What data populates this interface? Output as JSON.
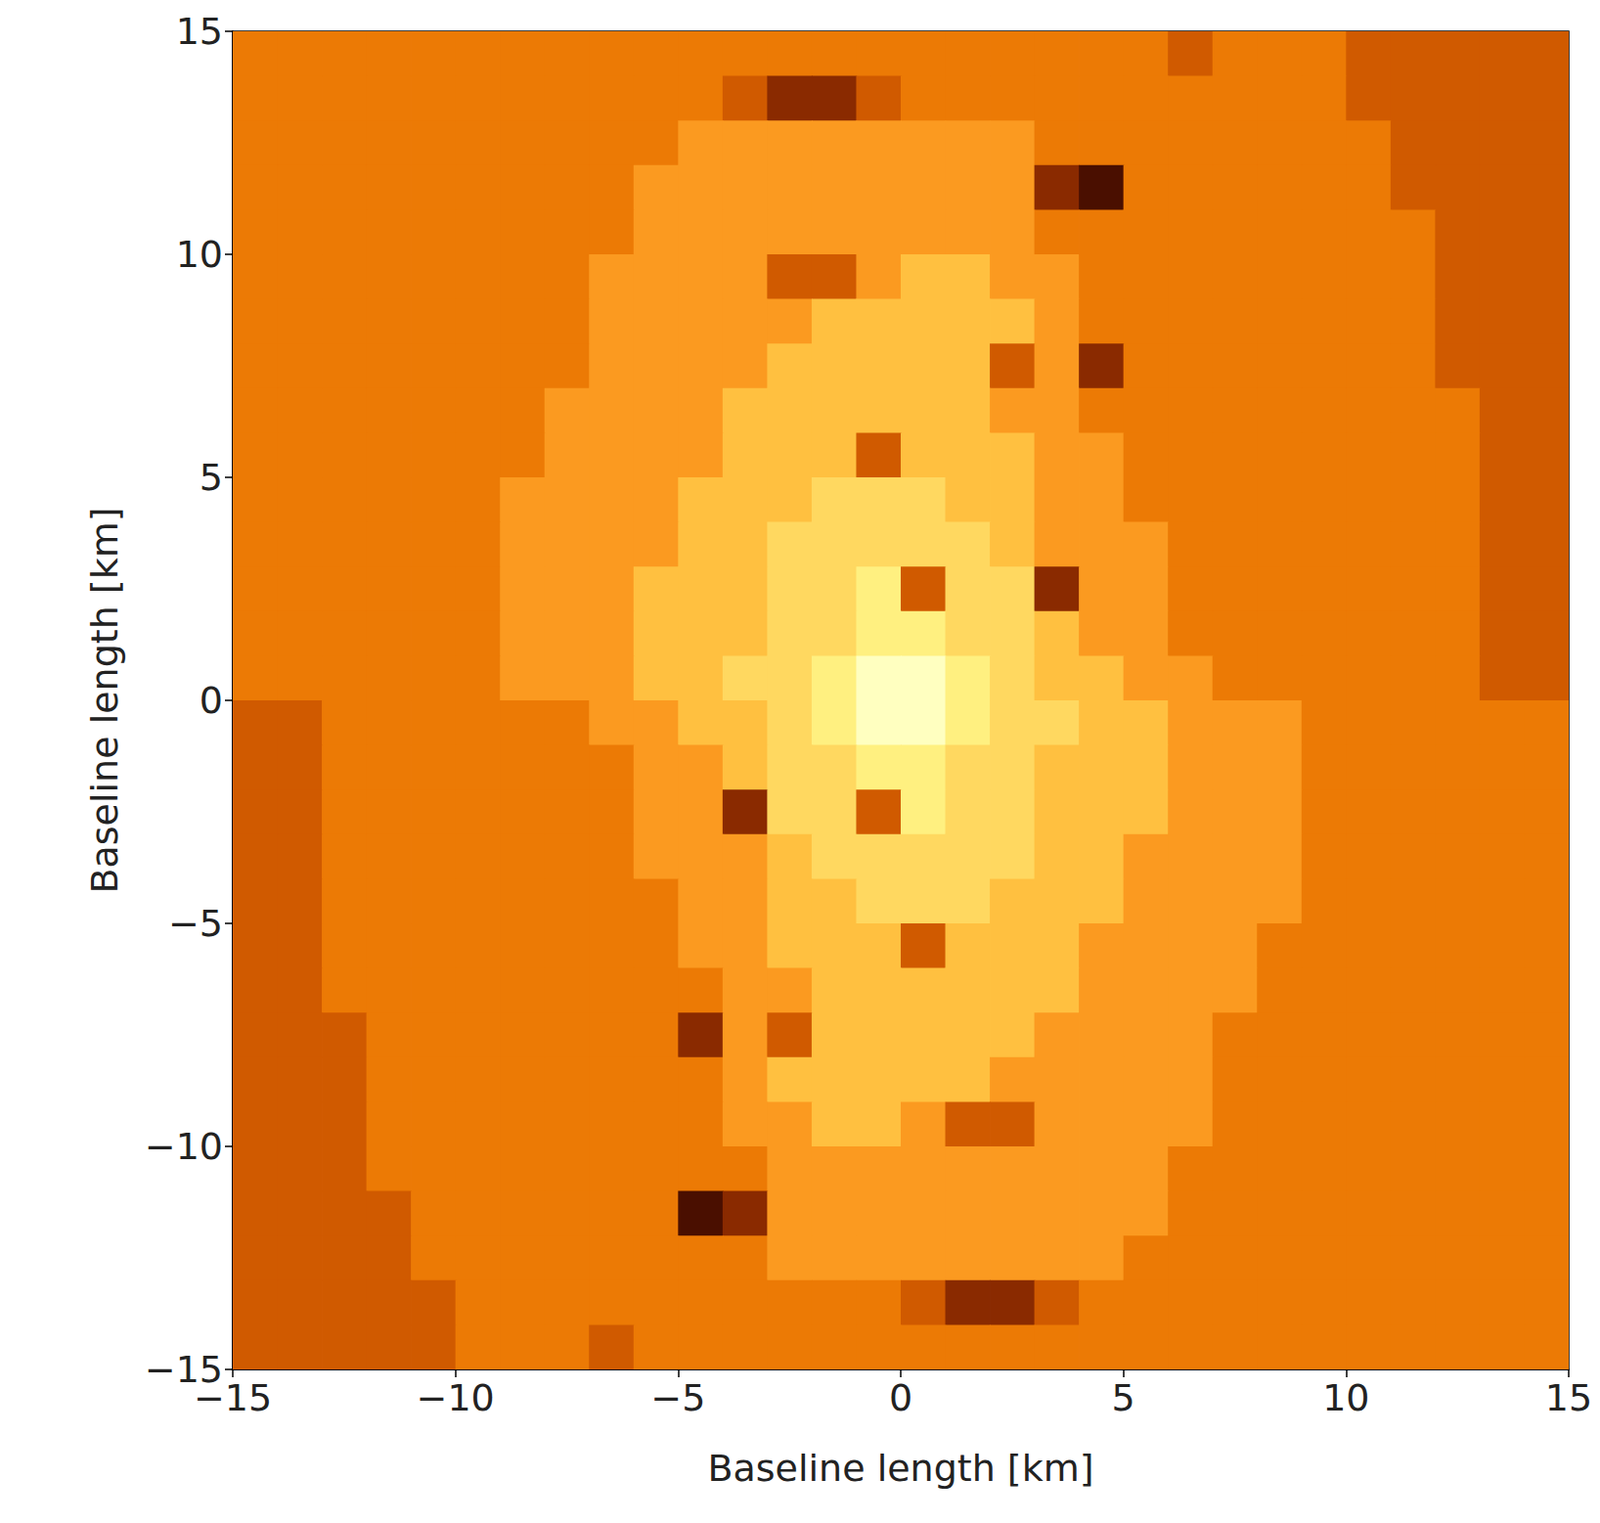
{
  "chart_data": {
    "type": "heatmap",
    "xlabel": "Baseline length [km]",
    "ylabel": "Baseline length [km]",
    "xlim": [
      -15,
      15
    ],
    "ylim": [
      -15,
      15
    ],
    "xticks": [
      {
        "value": -15,
        "label": "−15"
      },
      {
        "value": -10,
        "label": "−10"
      },
      {
        "value": -5,
        "label": "−5"
      },
      0,
      5,
      10,
      15
    ],
    "yticks": [
      {
        "value": -15,
        "label": "−15"
      },
      {
        "value": -10,
        "label": "−10"
      },
      {
        "value": -5,
        "label": "−5"
      },
      0,
      5,
      10,
      15
    ],
    "grid": false,
    "x": [
      -14.5,
      -13.5,
      -12.5,
      -11.5,
      -10.5,
      -9.5,
      -8.5,
      -7.5,
      -6.5,
      -5.5,
      -4.5,
      -3.5,
      -2.5,
      -1.5,
      -0.5,
      0.5,
      1.5,
      2.5,
      3.5,
      4.5,
      5.5,
      6.5,
      7.5,
      8.5,
      9.5,
      10.5,
      11.5,
      12.5,
      13.5,
      14.5
    ],
    "y": [
      14.5,
      13.5,
      12.5,
      11.5,
      10.5,
      9.5,
      8.5,
      7.5,
      6.5,
      5.5,
      4.5,
      3.5,
      2.5,
      1.5,
      0.5,
      -0.5,
      -1.5,
      -2.5,
      -3.5,
      -4.5,
      -5.5,
      -6.5,
      -7.5,
      -8.5,
      -9.5,
      -10.5,
      -11.5,
      -12.5,
      -13.5,
      -14.5
    ],
    "cells": [
      [
        4,
        4,
        4,
        4,
        4,
        4,
        4,
        4,
        4,
        4,
        4,
        4,
        4,
        4,
        4,
        4,
        4,
        4,
        4,
        4,
        4,
        3,
        4,
        4,
        4,
        3,
        3,
        3,
        3,
        3
      ],
      [
        4,
        4,
        4,
        4,
        4,
        4,
        4,
        4,
        4,
        4,
        4,
        3,
        2,
        2,
        3,
        4,
        4,
        4,
        4,
        4,
        4,
        4,
        4,
        4,
        4,
        3,
        3,
        3,
        3,
        3
      ],
      [
        4,
        4,
        4,
        4,
        4,
        4,
        4,
        4,
        4,
        4,
        5,
        5,
        5,
        5,
        5,
        5,
        5,
        5,
        4,
        4,
        4,
        4,
        4,
        4,
        4,
        4,
        3,
        3,
        3,
        3
      ],
      [
        4,
        4,
        4,
        4,
        4,
        4,
        4,
        4,
        4,
        5,
        5,
        5,
        5,
        5,
        5,
        5,
        5,
        5,
        2,
        1,
        4,
        4,
        4,
        4,
        4,
        4,
        3,
        3,
        3,
        3
      ],
      [
        4,
        4,
        4,
        4,
        4,
        4,
        4,
        4,
        4,
        5,
        5,
        5,
        5,
        5,
        5,
        5,
        5,
        5,
        4,
        4,
        4,
        4,
        4,
        4,
        4,
        4,
        4,
        3,
        3,
        3
      ],
      [
        4,
        4,
        4,
        4,
        4,
        4,
        4,
        4,
        5,
        5,
        5,
        5,
        3,
        3,
        5,
        6,
        6,
        5,
        5,
        4,
        4,
        4,
        4,
        4,
        4,
        4,
        4,
        3,
        3,
        3
      ],
      [
        4,
        4,
        4,
        4,
        4,
        4,
        4,
        4,
        5,
        5,
        5,
        5,
        5,
        6,
        6,
        6,
        6,
        6,
        5,
        4,
        4,
        4,
        4,
        4,
        4,
        4,
        4,
        3,
        3,
        3
      ],
      [
        4,
        4,
        4,
        4,
        4,
        4,
        4,
        4,
        5,
        5,
        5,
        5,
        6,
        6,
        6,
        6,
        6,
        3,
        5,
        2,
        4,
        4,
        4,
        4,
        4,
        4,
        4,
        3,
        3,
        3
      ],
      [
        4,
        4,
        4,
        4,
        4,
        4,
        4,
        5,
        5,
        5,
        5,
        6,
        6,
        6,
        6,
        6,
        6,
        5,
        5,
        4,
        4,
        4,
        4,
        4,
        4,
        4,
        4,
        4,
        3,
        3
      ],
      [
        4,
        4,
        4,
        4,
        4,
        4,
        4,
        5,
        5,
        5,
        5,
        6,
        6,
        6,
        3,
        6,
        6,
        6,
        5,
        5,
        4,
        4,
        4,
        4,
        4,
        4,
        4,
        4,
        3,
        3
      ],
      [
        4,
        4,
        4,
        4,
        4,
        4,
        5,
        5,
        5,
        5,
        6,
        6,
        6,
        7,
        7,
        7,
        6,
        6,
        5,
        5,
        4,
        4,
        4,
        4,
        4,
        4,
        4,
        4,
        3,
        3
      ],
      [
        4,
        4,
        4,
        4,
        4,
        4,
        5,
        5,
        5,
        5,
        6,
        6,
        7,
        7,
        7,
        7,
        7,
        6,
        5,
        5,
        5,
        4,
        4,
        4,
        4,
        4,
        4,
        4,
        3,
        3
      ],
      [
        4,
        4,
        4,
        4,
        4,
        4,
        5,
        5,
        5,
        6,
        6,
        6,
        7,
        7,
        8,
        3,
        7,
        7,
        2,
        5,
        5,
        4,
        4,
        4,
        4,
        4,
        4,
        4,
        3,
        3
      ],
      [
        4,
        4,
        4,
        4,
        4,
        4,
        5,
        5,
        5,
        6,
        6,
        6,
        7,
        7,
        8,
        8,
        7,
        7,
        6,
        5,
        5,
        4,
        4,
        4,
        4,
        4,
        4,
        4,
        3,
        3
      ],
      [
        4,
        4,
        4,
        4,
        4,
        4,
        5,
        5,
        5,
        6,
        6,
        7,
        7,
        8,
        9,
        9,
        8,
        7,
        6,
        6,
        5,
        5,
        4,
        4,
        4,
        4,
        4,
        4,
        3,
        3
      ],
      [
        3,
        3,
        4,
        4,
        4,
        4,
        4,
        4,
        5,
        5,
        6,
        6,
        7,
        8,
        9,
        9,
        8,
        7,
        7,
        6,
        6,
        5,
        5,
        5,
        4,
        4,
        4,
        4,
        4,
        4
      ],
      [
        3,
        3,
        4,
        4,
        4,
        4,
        4,
        4,
        4,
        5,
        5,
        6,
        7,
        7,
        8,
        8,
        7,
        7,
        6,
        6,
        6,
        5,
        5,
        5,
        4,
        4,
        4,
        4,
        4,
        4
      ],
      [
        3,
        3,
        4,
        4,
        4,
        4,
        4,
        4,
        4,
        5,
        5,
        2,
        7,
        7,
        3,
        8,
        7,
        7,
        6,
        6,
        6,
        5,
        5,
        5,
        4,
        4,
        4,
        4,
        4,
        4
      ],
      [
        3,
        3,
        4,
        4,
        4,
        4,
        4,
        4,
        4,
        5,
        5,
        5,
        6,
        7,
        7,
        7,
        7,
        7,
        6,
        6,
        5,
        5,
        5,
        5,
        4,
        4,
        4,
        4,
        4,
        4
      ],
      [
        3,
        3,
        4,
        4,
        4,
        4,
        4,
        4,
        4,
        4,
        5,
        5,
        6,
        6,
        7,
        7,
        7,
        6,
        6,
        6,
        5,
        5,
        5,
        5,
        4,
        4,
        4,
        4,
        4,
        4
      ],
      [
        3,
        3,
        4,
        4,
        4,
        4,
        4,
        4,
        4,
        4,
        5,
        5,
        6,
        6,
        6,
        3,
        6,
        6,
        6,
        5,
        5,
        5,
        5,
        4,
        4,
        4,
        4,
        4,
        4,
        4
      ],
      [
        3,
        3,
        4,
        4,
        4,
        4,
        4,
        4,
        4,
        4,
        4,
        5,
        5,
        6,
        6,
        6,
        6,
        6,
        6,
        5,
        5,
        5,
        5,
        4,
        4,
        4,
        4,
        4,
        4,
        4
      ],
      [
        3,
        3,
        3,
        4,
        4,
        4,
        4,
        4,
        4,
        4,
        2,
        5,
        3,
        6,
        6,
        6,
        6,
        6,
        5,
        5,
        5,
        5,
        4,
        4,
        4,
        4,
        4,
        4,
        4,
        4
      ],
      [
        3,
        3,
        3,
        4,
        4,
        4,
        4,
        4,
        4,
        4,
        4,
        5,
        6,
        6,
        6,
        6,
        6,
        5,
        5,
        5,
        5,
        5,
        4,
        4,
        4,
        4,
        4,
        4,
        4,
        4
      ],
      [
        3,
        3,
        3,
        4,
        4,
        4,
        4,
        4,
        4,
        4,
        4,
        5,
        5,
        6,
        6,
        5,
        3,
        3,
        5,
        5,
        5,
        5,
        4,
        4,
        4,
        4,
        4,
        4,
        4,
        4
      ],
      [
        3,
        3,
        3,
        4,
        4,
        4,
        4,
        4,
        4,
        4,
        4,
        4,
        5,
        5,
        5,
        5,
        5,
        5,
        5,
        5,
        5,
        4,
        4,
        4,
        4,
        4,
        4,
        4,
        4,
        4
      ],
      [
        3,
        3,
        3,
        3,
        4,
        4,
        4,
        4,
        4,
        4,
        1,
        2,
        5,
        5,
        5,
        5,
        5,
        5,
        5,
        5,
        5,
        4,
        4,
        4,
        4,
        4,
        4,
        4,
        4,
        4
      ],
      [
        3,
        3,
        3,
        3,
        4,
        4,
        4,
        4,
        4,
        4,
        4,
        4,
        5,
        5,
        5,
        5,
        5,
        5,
        5,
        5,
        4,
        4,
        4,
        4,
        4,
        4,
        4,
        4,
        4,
        4
      ],
      [
        3,
        3,
        3,
        3,
        3,
        4,
        4,
        4,
        4,
        4,
        4,
        4,
        4,
        4,
        4,
        3,
        2,
        2,
        3,
        4,
        4,
        4,
        4,
        4,
        4,
        4,
        4,
        4,
        4,
        4
      ],
      [
        3,
        3,
        3,
        3,
        3,
        4,
        4,
        4,
        3,
        4,
        4,
        4,
        4,
        4,
        4,
        4,
        4,
        4,
        4,
        4,
        4,
        4,
        4,
        4,
        4,
        4,
        4,
        4,
        4,
        4
      ]
    ]
  }
}
